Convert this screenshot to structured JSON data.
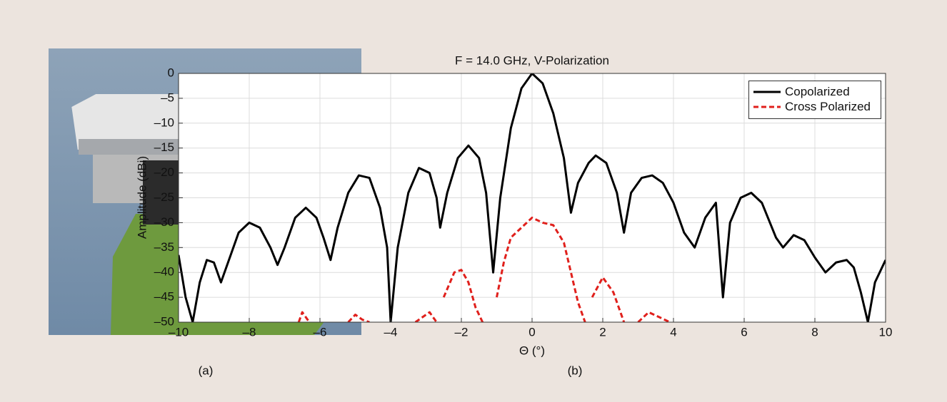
{
  "panels": {
    "a_caption": "(a)",
    "b_caption": "(b)"
  },
  "chart_data": {
    "type": "line",
    "title": "F = 14.0 GHz, V-Polarization",
    "x_label": "Θ (°)",
    "y_label": "Amplitude (dBi)",
    "xlim": [
      -10,
      10
    ],
    "ylim": [
      -50,
      0
    ],
    "xticks": [
      {
        "value": -10,
        "label": "–10"
      },
      {
        "value": -8,
        "label": "–8"
      },
      {
        "value": -6,
        "label": "–6"
      },
      {
        "value": -4,
        "label": "–4"
      },
      {
        "value": -2,
        "label": "–2"
      },
      0,
      2,
      4,
      6,
      8,
      10
    ],
    "yticks": [
      0,
      {
        "value": -5,
        "label": "–5"
      },
      {
        "value": -10,
        "label": "–10"
      },
      {
        "value": -15,
        "label": "–15"
      },
      {
        "value": -20,
        "label": "–20"
      },
      {
        "value": -25,
        "label": "–25"
      },
      {
        "value": -30,
        "label": "–30"
      },
      {
        "value": -35,
        "label": "–35"
      },
      {
        "value": -40,
        "label": "–40"
      },
      {
        "value": -45,
        "label": "–45"
      },
      {
        "value": -50,
        "label": "–50"
      }
    ],
    "grid": true,
    "legend": "upper right",
    "series": [
      {
        "name": "Copolarized",
        "color": "#000000",
        "style": "solid",
        "x": [
          -10,
          -9.8,
          -9.6,
          -9.4,
          -9.2,
          -9.0,
          -8.8,
          -8.6,
          -8.3,
          -8.0,
          -7.7,
          -7.4,
          -7.2,
          -7.0,
          -6.7,
          -6.4,
          -6.1,
          -5.9,
          -5.7,
          -5.5,
          -5.2,
          -4.9,
          -4.6,
          -4.3,
          -4.1,
          -4.0,
          -3.8,
          -3.5,
          -3.2,
          -2.9,
          -2.7,
          -2.6,
          -2.4,
          -2.1,
          -1.8,
          -1.5,
          -1.3,
          -1.1,
          -0.9,
          -0.6,
          -0.3,
          0,
          0.3,
          0.6,
          0.9,
          1.1,
          1.3,
          1.6,
          1.8,
          2.1,
          2.4,
          2.6,
          2.8,
          3.1,
          3.4,
          3.7,
          4.0,
          4.3,
          4.6,
          4.9,
          5.2,
          5.4,
          5.6,
          5.9,
          6.2,
          6.5,
          6.9,
          7.1,
          7.4,
          7.7,
          8.0,
          8.3,
          8.6,
          8.9,
          9.1,
          9.3,
          9.5,
          9.7,
          10
        ],
        "values": [
          -36.5,
          -45,
          -50,
          -42,
          -37.5,
          -38,
          -42,
          -38,
          -32,
          -30,
          -31,
          -35,
          -38.5,
          -35,
          -29,
          -27,
          -29,
          -33,
          -37.5,
          -31,
          -24,
          -20.5,
          -21,
          -27,
          -35,
          -50,
          -35,
          -24,
          -19,
          -20,
          -25,
          -31,
          -24,
          -17,
          -14.5,
          -17,
          -24,
          -40,
          -25,
          -11,
          -3,
          0,
          -2,
          -8,
          -17,
          -28,
          -22,
          -18,
          -16.5,
          -18,
          -24,
          -32,
          -24,
          -21,
          -20.5,
          -22,
          -26,
          -32,
          -35,
          -29,
          -26,
          -45,
          -30,
          -25,
          -24,
          -26,
          -33,
          -35,
          -32.5,
          -33.5,
          -37,
          -40,
          -38,
          -37.5,
          -39,
          -44,
          -50,
          -42,
          -37.5
        ]
      },
      {
        "name": "Cross Polarized",
        "color": "#e0201c",
        "style": "dashed",
        "x": [
          -6.6,
          -6.5,
          -6.3,
          -5.8,
          -5.2,
          -5.0,
          -4.8,
          -4.6,
          -4.0,
          -3.3,
          -3.1,
          -2.9,
          -2.7,
          -2.6,
          -2.5,
          -2.2,
          -2.0,
          -1.8,
          -1.6,
          -1.4,
          -1.2,
          -1.0,
          -0.8,
          -0.6,
          -0.3,
          0,
          0.3,
          0.6,
          0.9,
          1.1,
          1.3,
          1.5,
          1.6,
          1.7,
          2.0,
          2.3,
          2.6,
          2.8,
          3.0,
          3.3,
          3.6,
          3.9
        ],
        "values": [
          -50,
          -48,
          -50,
          null,
          -50,
          -48.5,
          -49.5,
          -50,
          null,
          -50,
          -49,
          -48,
          -50,
          null,
          -45,
          -40,
          -39.5,
          -42,
          -47,
          -50,
          null,
          -45,
          -38,
          -33,
          -31,
          -29,
          -30,
          -30.5,
          -34,
          -40,
          -46,
          -50,
          null,
          -45,
          -41,
          -44,
          -50,
          null,
          -50,
          -48,
          -49,
          -50
        ]
      }
    ]
  }
}
